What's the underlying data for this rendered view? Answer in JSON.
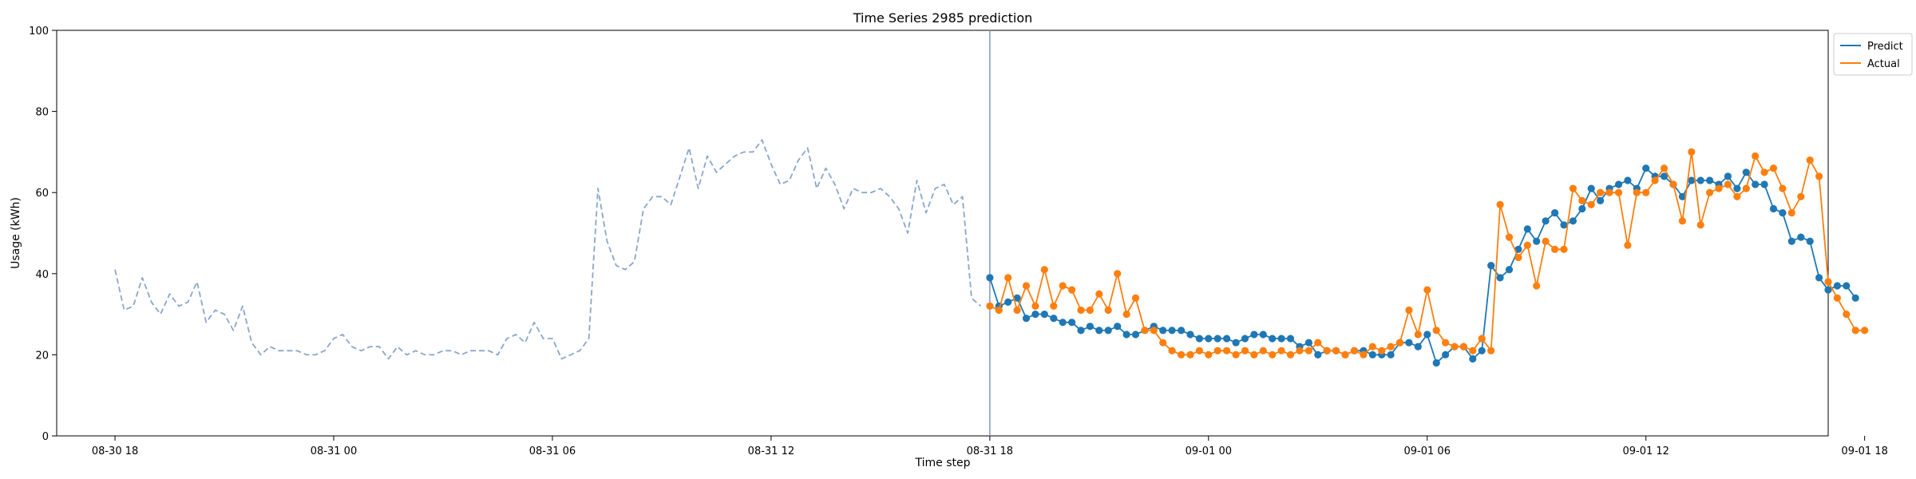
{
  "chart_data": {
    "type": "line",
    "title": "Time Series 2985 prediction",
    "xlabel": "Time step",
    "ylabel": "Usage (kWh)",
    "ylim": [
      0,
      100
    ],
    "yticks": [
      0,
      20,
      40,
      60,
      80,
      100
    ],
    "xlim": [
      -1.6,
      47.0
    ],
    "xticks": [
      {
        "pos": 0,
        "label": "08-30 18"
      },
      {
        "pos": 6,
        "label": "08-31 00"
      },
      {
        "pos": 12,
        "label": "08-31 06"
      },
      {
        "pos": 18,
        "label": "08-31 12"
      },
      {
        "pos": 24,
        "label": "08-31 18"
      },
      {
        "pos": 30,
        "label": "09-01 00"
      },
      {
        "pos": 36,
        "label": "09-01 06"
      },
      {
        "pos": 42,
        "label": "09-01 12"
      },
      {
        "pos": 48,
        "label": "09-01 18"
      }
    ],
    "prediction_start": 24,
    "grid": false,
    "legend_position": "top-right",
    "series": [
      {
        "name": "",
        "style": "dashed",
        "color": "#8aa6cc",
        "step": 0.25,
        "start": 0,
        "values": [
          41,
          31,
          32,
          39,
          33,
          30,
          35,
          32,
          33,
          38,
          28,
          31,
          30,
          26,
          32,
          23,
          20,
          22,
          21,
          21,
          21,
          20,
          20,
          21,
          24,
          25,
          22,
          21,
          22,
          22,
          19,
          22,
          20,
          21,
          20,
          20,
          21,
          21,
          20,
          21,
          21,
          21,
          20,
          24,
          25,
          23,
          28,
          24,
          24,
          19,
          20,
          21,
          24,
          61,
          48,
          42,
          41,
          43,
          56,
          59,
          59,
          57,
          64,
          71,
          61,
          69,
          65,
          67,
          69,
          70,
          70,
          73,
          67,
          62,
          63,
          68,
          71,
          61,
          66,
          62,
          56,
          61,
          60,
          60,
          61,
          59,
          56,
          50,
          63,
          55,
          61,
          62,
          57,
          59,
          34,
          32
        ]
      },
      {
        "name": "Predict",
        "style": "solid-marker",
        "color": "#1f77b4",
        "step": 0.25,
        "start": 24,
        "values": [
          39,
          32,
          33,
          34,
          29,
          30,
          30,
          29,
          28,
          28,
          26,
          27,
          26,
          26,
          27,
          25,
          25,
          26,
          27,
          26,
          26,
          26,
          25,
          24,
          24,
          24,
          24,
          23,
          24,
          25,
          25,
          24,
          24,
          24,
          22,
          23,
          20,
          21,
          21,
          20,
          21,
          21,
          20,
          20,
          20,
          23,
          23,
          22,
          25,
          18,
          20,
          22,
          22,
          19,
          21,
          42,
          39,
          41,
          46,
          51,
          48,
          53,
          55,
          52,
          53,
          56,
          61,
          58,
          61,
          62,
          63,
          61,
          66,
          64,
          64,
          62,
          59,
          63,
          63,
          63,
          62,
          64,
          61,
          65,
          62,
          62,
          56,
          55,
          48,
          49,
          48,
          39,
          36,
          37,
          37,
          34
        ]
      },
      {
        "name": "Actual",
        "style": "solid-marker",
        "color": "#ff7f0e",
        "step": 0.25,
        "start": 24,
        "values": [
          32,
          31,
          39,
          31,
          37,
          32,
          41,
          32,
          37,
          36,
          31,
          31,
          35,
          31,
          40,
          30,
          34,
          26,
          26,
          23,
          21,
          20,
          20,
          21,
          20,
          21,
          21,
          20,
          21,
          20,
          21,
          20,
          21,
          20,
          21,
          21,
          23,
          21,
          21,
          20,
          21,
          20,
          22,
          21,
          22,
          23,
          31,
          25,
          36,
          26,
          23,
          22,
          22,
          21,
          24,
          21,
          57,
          49,
          44,
          47,
          37,
          48,
          46,
          46,
          61,
          58,
          57,
          60,
          60,
          60,
          47,
          60,
          60,
          63,
          66,
          62,
          53,
          70,
          52,
          60,
          61,
          62,
          59,
          61,
          69,
          65,
          66,
          61,
          55,
          59,
          68,
          64,
          38,
          34,
          30,
          26,
          26
        ]
      }
    ]
  }
}
